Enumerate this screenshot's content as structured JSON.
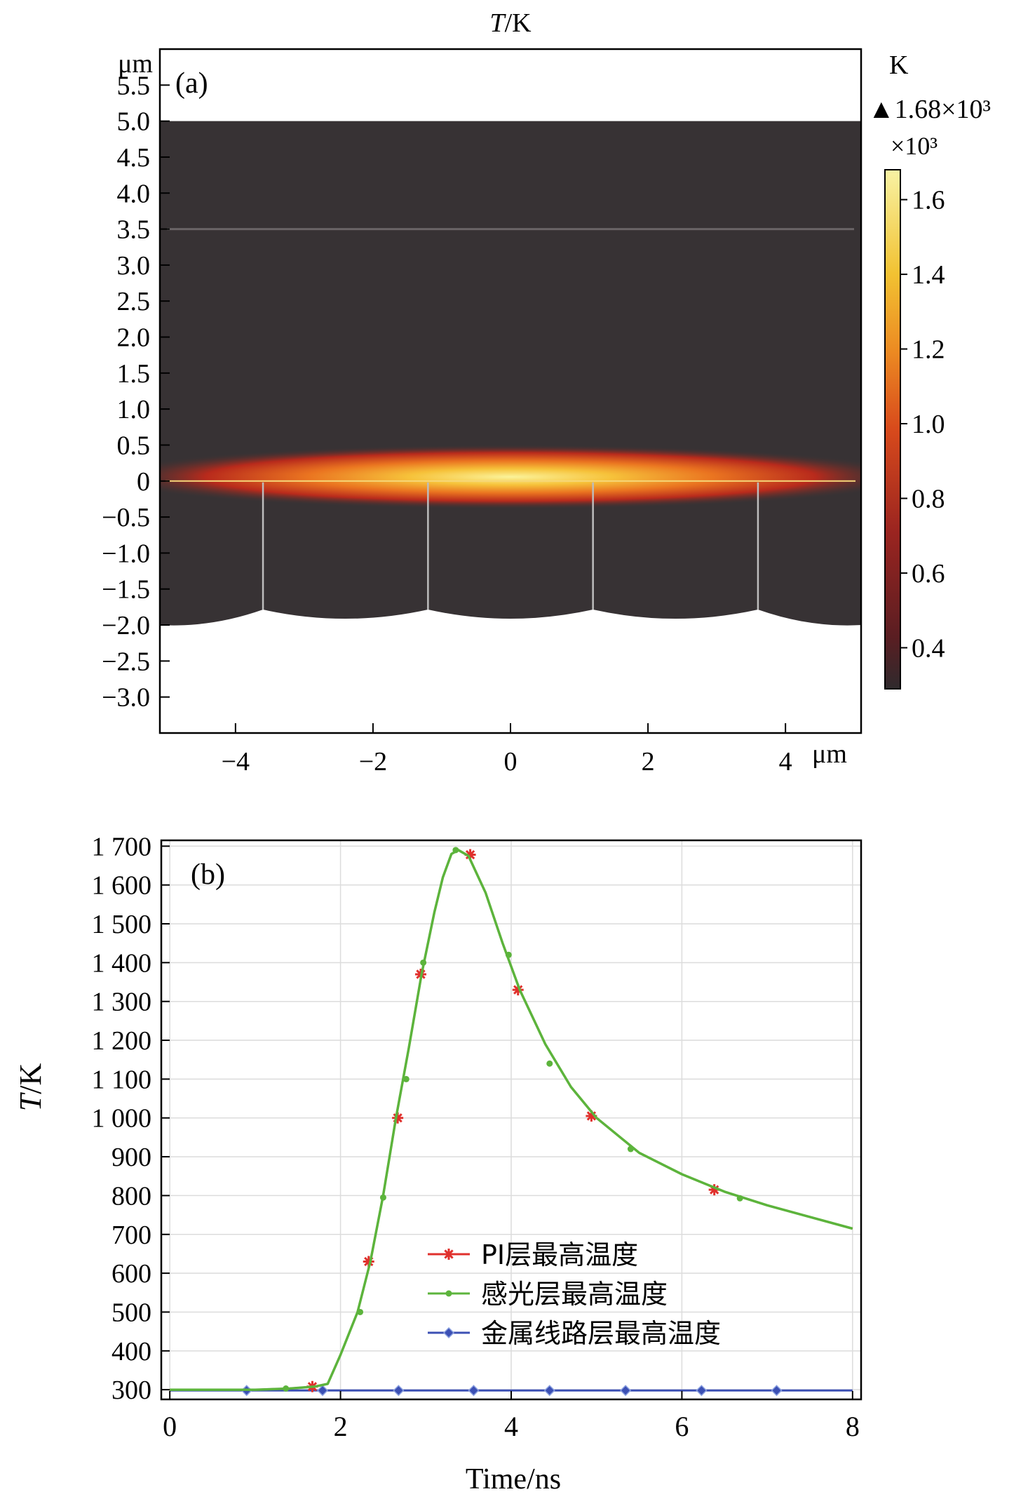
{
  "chart_data": [
    {
      "panel_label": "(a)",
      "type": "heatmap",
      "title": "T/K",
      "title_italic": "T",
      "title_rest": "/K",
      "xunit": "μm",
      "yunit": "μm",
      "xlim": [
        -5.1,
        5.1
      ],
      "ylim": [
        -3.5,
        6.0
      ],
      "xticks": [
        -4,
        -2,
        0,
        2,
        4
      ],
      "xtick_labels": [
        "−4",
        "−2",
        "0",
        "2",
        "4"
      ],
      "yticks": [
        5.5,
        5.0,
        4.5,
        4.0,
        3.5,
        3.0,
        2.5,
        2.0,
        1.5,
        1.0,
        0.5,
        0,
        -0.5,
        -1.0,
        -1.5,
        -2.0,
        -2.5,
        -3.0
      ],
      "ytick_labels": [
        "5.5",
        "5.0",
        "4.5",
        "4.0",
        "3.5",
        "3.0",
        "2.5",
        "2.0",
        "1.5",
        "1.0",
        "0.5",
        "0",
        "−0.5",
        "−1.0",
        "−1.5",
        "−2.0",
        "−2.5",
        "−3.0"
      ],
      "domain": {
        "x_range": [
          -5.1,
          5.1
        ],
        "y_top": 5.0,
        "y_bottom": -2.0,
        "layer_line_y": 3.5,
        "hot_interface_y": 0
      },
      "vertical_boundaries_x": [
        -3.6,
        -1.2,
        1.2,
        3.6
      ],
      "colorbar": {
        "unit": "K",
        "max_label": "1.68×10³",
        "multiplier": "×10³",
        "range": [
          0.29,
          1.68
        ],
        "ticks": [
          1.6,
          1.4,
          1.2,
          1.0,
          0.8,
          0.6,
          0.4
        ],
        "tick_labels": [
          "1.6",
          "1.4",
          "1.2",
          "1.0",
          "0.8",
          "0.6",
          "0.4"
        ],
        "max_marker": "▲"
      },
      "colors": {
        "background": "#373234",
        "hot_core": "#f8ef8a",
        "hot_mid": "#e8721c",
        "hot_edge": "#b4241c"
      }
    },
    {
      "panel_label": "(b)",
      "type": "line",
      "xlabel": "Time/ns",
      "ylabel": "T/K",
      "ylabel_italic": "T",
      "ylabel_rest": "/K",
      "xlim": [
        -0.1,
        8.1
      ],
      "ylim": [
        275,
        1715
      ],
      "xticks": [
        0,
        2,
        4,
        6,
        8
      ],
      "xtick_labels": [
        "0",
        "2",
        "4",
        "6",
        "8"
      ],
      "yticks": [
        300,
        400,
        500,
        600,
        700,
        800,
        900,
        1000,
        1100,
        1200,
        1300,
        1400,
        1500,
        1600,
        1700
      ],
      "ytick_labels": [
        "300",
        "400",
        "500",
        "600",
        "700",
        "800",
        "900",
        "1 000",
        "1 100",
        "1 200",
        "1 300",
        "1 400",
        "1 500",
        "1 600",
        "1 700"
      ],
      "grid": true,
      "legend_position": "lower-right",
      "series": [
        {
          "name": "PI层最高温度",
          "color": "#e0302c",
          "marker": "asterisk",
          "x": [
            0,
            0.5,
            1.0,
            1.4,
            1.7,
            1.85,
            2.0,
            2.2,
            2.35,
            2.5,
            2.65,
            2.8,
            2.95,
            3.1,
            3.2,
            3.3,
            3.38,
            3.5,
            3.7,
            3.9,
            4.1,
            4.4,
            4.7,
            5.0,
            5.5,
            6.0,
            6.5,
            7.0,
            7.5,
            8.0
          ],
          "y": [
            300,
            300,
            300,
            303,
            308,
            315,
            390,
            500,
            630,
            800,
            1000,
            1180,
            1370,
            1530,
            1620,
            1680,
            1690,
            1675,
            1580,
            1450,
            1330,
            1190,
            1080,
            1000,
            910,
            855,
            810,
            775,
            745,
            715
          ],
          "marker_x": [
            1.67,
            2.33,
            2.67,
            2.94,
            3.52,
            4.08,
            4.94,
            6.38
          ],
          "marker_y": [
            308,
            630,
            1000,
            1370,
            1678,
            1330,
            1005,
            815
          ]
        },
        {
          "name": "感光层最高温度",
          "color": "#5cb43c",
          "marker": "dot",
          "x": [
            0,
            0.5,
            1.0,
            1.4,
            1.7,
            1.85,
            2.0,
            2.2,
            2.35,
            2.5,
            2.65,
            2.8,
            2.95,
            3.1,
            3.2,
            3.3,
            3.38,
            3.5,
            3.7,
            3.9,
            4.1,
            4.4,
            4.7,
            5.0,
            5.5,
            6.0,
            6.5,
            7.0,
            7.5,
            8.0
          ],
          "y": [
            300,
            300,
            300,
            303,
            308,
            315,
            390,
            500,
            630,
            800,
            1000,
            1180,
            1370,
            1530,
            1620,
            1680,
            1690,
            1675,
            1580,
            1450,
            1330,
            1190,
            1080,
            1000,
            910,
            855,
            810,
            775,
            745,
            715
          ],
          "marker_x": [
            1.36,
            2.23,
            2.5,
            2.77,
            2.97,
            3.35,
            3.97,
            4.45,
            5.4,
            6.68
          ],
          "marker_y": [
            303,
            500,
            795,
            1100,
            1400,
            1690,
            1420,
            1140,
            920,
            793
          ]
        },
        {
          "name": "金属线路层最高温度",
          "color": "#3c50b4",
          "marker": "diamond",
          "x": [
            0,
            8.0
          ],
          "y": [
            298,
            298
          ],
          "marker_x": [
            0.9,
            1.79,
            2.68,
            3.56,
            4.45,
            5.34,
            6.23,
            7.11
          ],
          "marker_y": [
            298,
            298,
            298,
            298,
            298,
            298,
            298,
            298
          ]
        }
      ]
    }
  ]
}
